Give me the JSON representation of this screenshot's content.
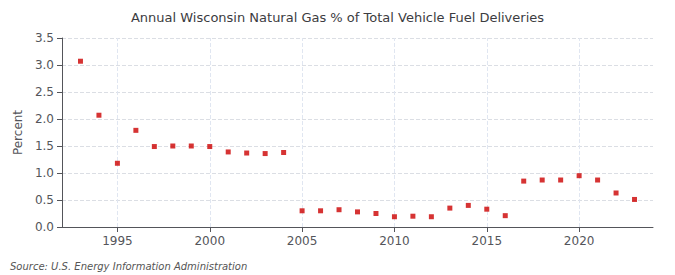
{
  "chart_data": {
    "type": "scatter",
    "title": "Annual Wisconsin Natural Gas % of Total Vehicle Fuel Deliveries",
    "ylabel": "Percent",
    "annotations": [
      "Source: U.S. Energy Information Administration"
    ],
    "x": [
      1993,
      1994,
      1995,
      1996,
      1997,
      1998,
      1999,
      2000,
      2001,
      2002,
      2003,
      2004,
      2005,
      2006,
      2007,
      2008,
      2009,
      2010,
      2011,
      2012,
      2013,
      2014,
      2015,
      2016,
      2017,
      2018,
      2019,
      2020,
      2021,
      2022,
      2023
    ],
    "values": [
      3.07,
      2.07,
      1.18,
      1.79,
      1.49,
      1.5,
      1.5,
      1.49,
      1.39,
      1.37,
      1.36,
      1.38,
      0.3,
      0.3,
      0.32,
      0.28,
      0.25,
      0.19,
      0.2,
      0.19,
      0.35,
      0.4,
      0.33,
      0.21,
      0.85,
      0.87,
      0.87,
      0.95,
      0.87,
      0.63,
      0.51
    ],
    "color": "#cc0000",
    "marker": "square",
    "xlim": [
      1992,
      2024
    ],
    "xticks": [
      1995,
      2000,
      2005,
      2010,
      2015,
      2020
    ],
    "ylim": [
      0,
      3.5
    ],
    "yticks": [
      {
        "value": 0,
        "label": "0.0"
      },
      0.5,
      {
        "value": 1,
        "label": "1.0"
      },
      1.5,
      {
        "value": 2,
        "label": "2.0"
      },
      2.5,
      {
        "value": 3,
        "label": "3.0"
      },
      3.5
    ],
    "grid": true
  }
}
